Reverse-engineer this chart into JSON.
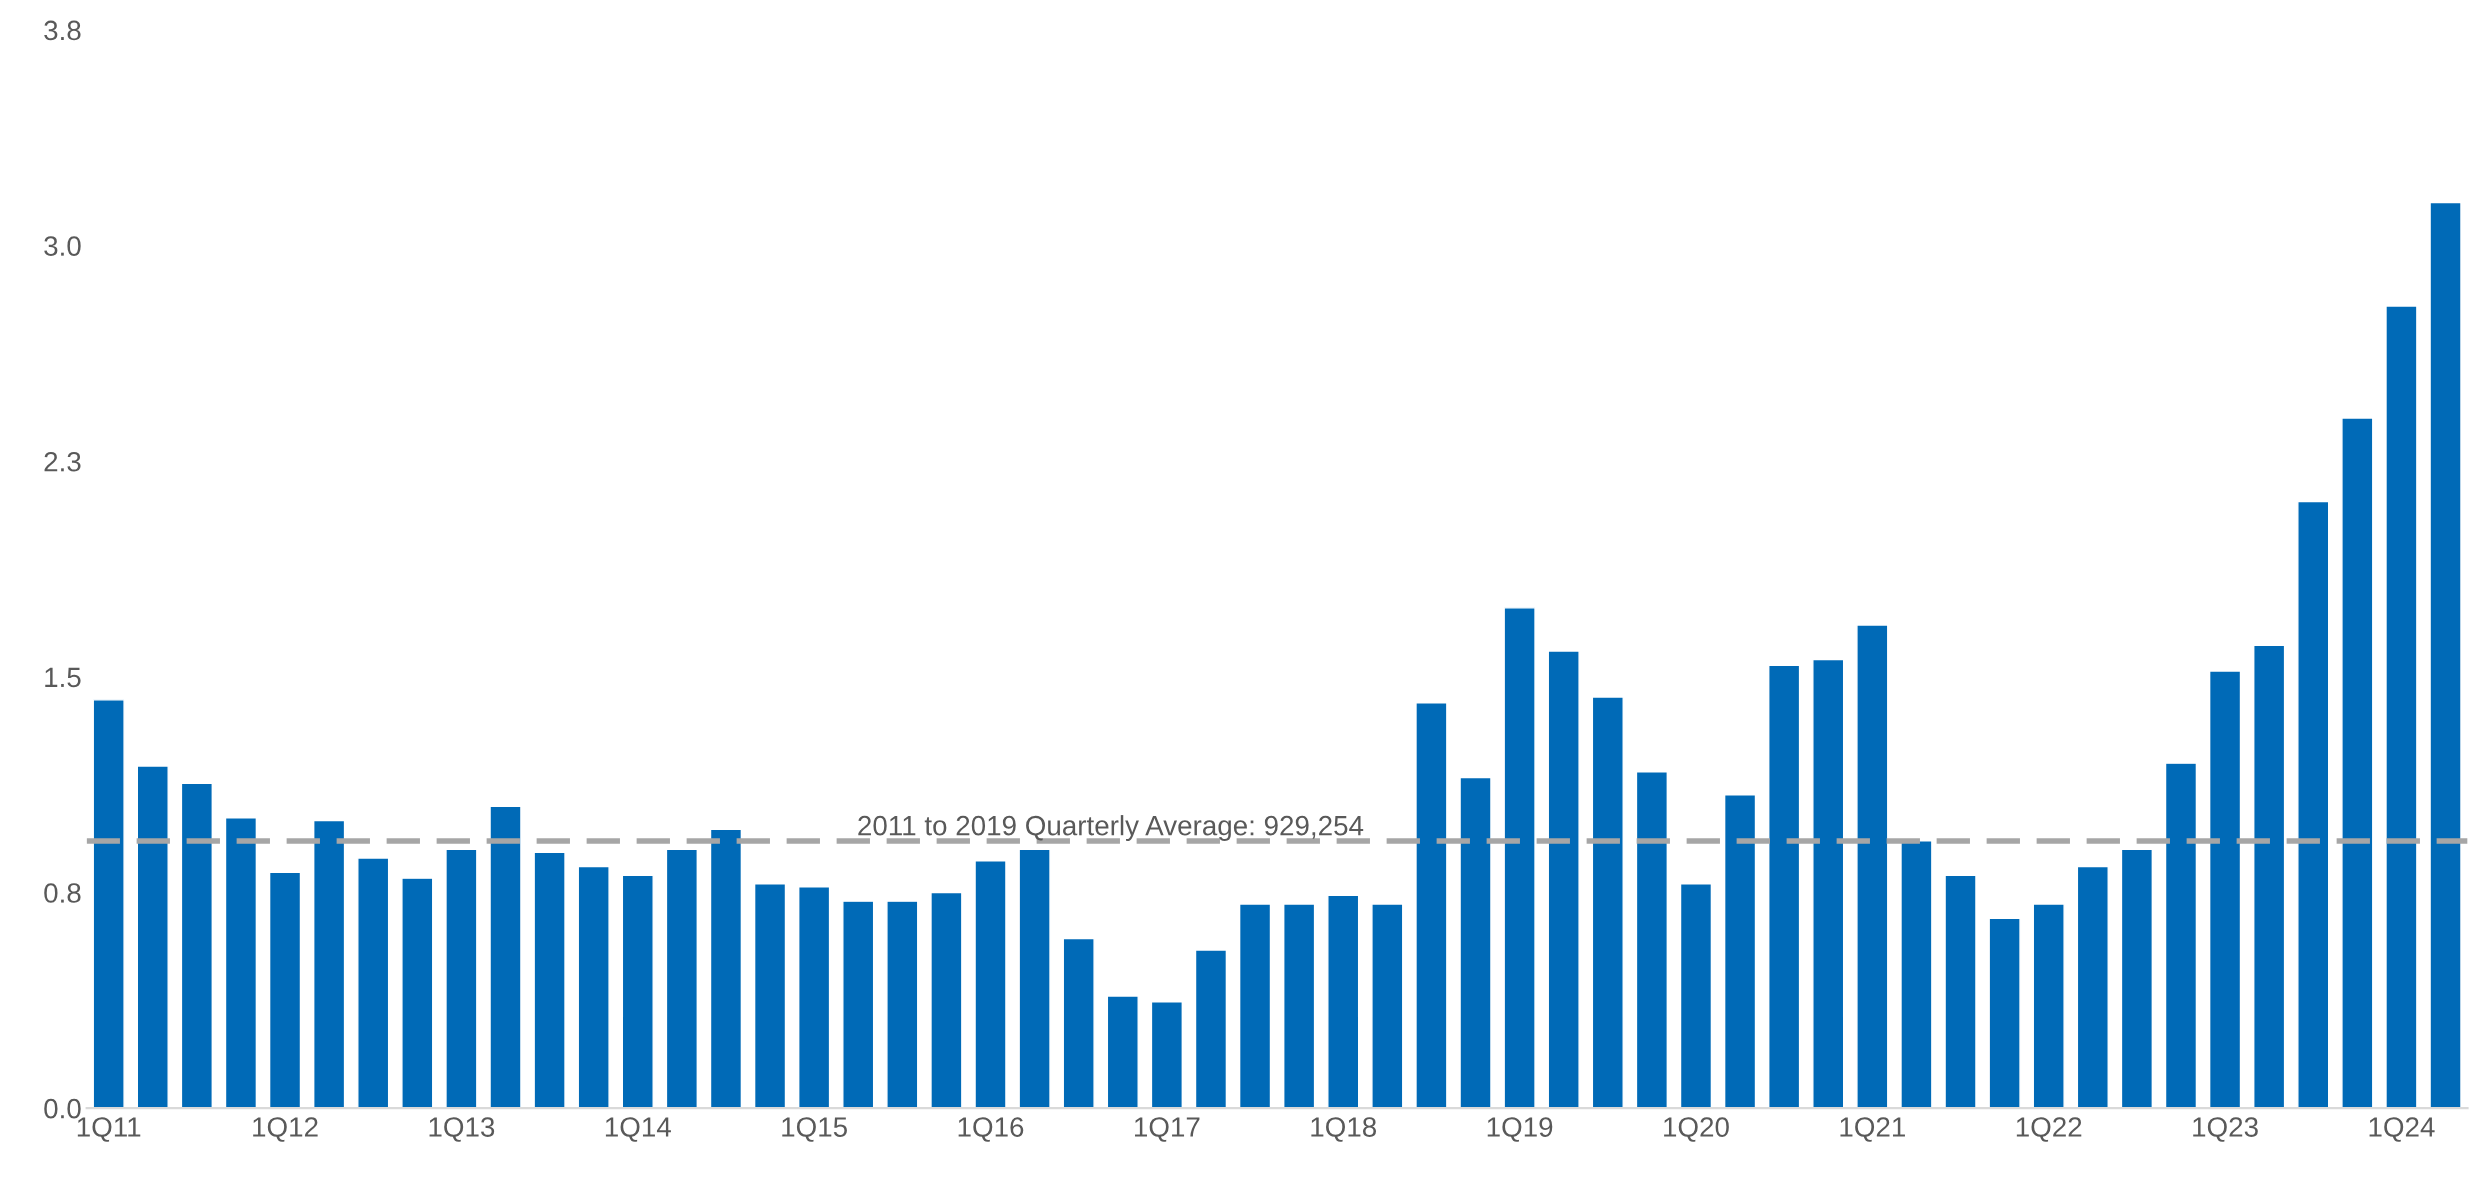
{
  "chart_data": {
    "type": "bar",
    "categories": [
      "1Q11",
      null,
      null,
      null,
      "1Q12",
      null,
      null,
      null,
      "1Q13",
      null,
      null,
      null,
      "1Q14",
      null,
      null,
      null,
      "1Q15",
      null,
      null,
      null,
      "1Q16",
      null,
      null,
      null,
      "1Q17",
      null,
      null,
      null,
      "1Q18",
      null,
      null,
      null,
      "1Q19",
      null,
      null,
      null,
      "1Q20",
      null,
      null,
      null,
      "1Q21",
      null,
      null,
      null,
      "1Q22",
      null,
      null,
      null,
      "1Q23",
      null,
      null,
      null,
      "1Q24",
      null
    ],
    "values": [
      1.42,
      1.19,
      1.13,
      1.01,
      0.82,
      1.0,
      0.87,
      0.8,
      0.9,
      1.05,
      0.89,
      0.84,
      0.81,
      0.9,
      0.97,
      0.78,
      0.77,
      0.72,
      0.72,
      0.75,
      0.86,
      0.9,
      0.59,
      0.39,
      0.37,
      0.55,
      0.71,
      0.71,
      0.74,
      0.71,
      1.41,
      1.15,
      1.74,
      1.59,
      1.43,
      1.17,
      0.78,
      1.09,
      1.54,
      1.56,
      1.68,
      0.93,
      0.81,
      0.66,
      0.71,
      0.84,
      0.9,
      1.2,
      1.52,
      1.61,
      2.11,
      2.4,
      2.79,
      3.15
    ],
    "color": "#006ab7",
    "ylim": [
      0,
      3.75
    ],
    "yticks": [
      {
        "value": 0,
        "label": "0.0"
      },
      {
        "value": 0.75,
        "label": "0.8"
      },
      1.5,
      {
        "value": 2.25,
        "label": "2.3"
      },
      {
        "value": 3,
        "label": "3.0"
      },
      {
        "value": 3.75,
        "label": "3.8"
      }
    ],
    "ref_lines": [
      {
        "axis": "y",
        "value": 0.929254,
        "label": "2011 to 2019 Quarterly Average: 929,254",
        "color": "#a6a6a6",
        "line_style": "dashed"
      }
    ],
    "grid": false,
    "legend": false
  }
}
